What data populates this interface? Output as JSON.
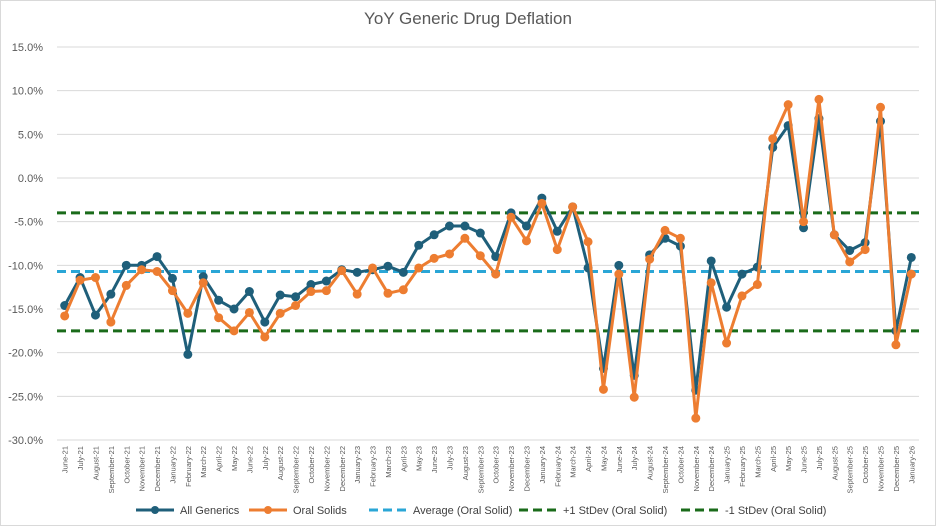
{
  "chart_data": {
    "type": "line",
    "title": "YoY Generic Drug Deflation",
    "xlabel": "",
    "ylabel": "",
    "ylim": [
      -30,
      15
    ],
    "y_ticks": [
      "15.0%",
      "10.0%",
      "5.0%",
      "0.0%",
      "-5.0%",
      "-10.0%",
      "-15.0%",
      "-20.0%",
      "-25.0%",
      "-30.0%"
    ],
    "y_tick_values": [
      15,
      10,
      5,
      0,
      -5,
      -10,
      -15,
      -20,
      -25,
      -30
    ],
    "grid": true,
    "legend_position": "bottom",
    "categories": [
      "June-21",
      "July-21",
      "August-21",
      "September-21",
      "October-21",
      "November-21",
      "December-21",
      "January-22",
      "February-22",
      "March-22",
      "April-22",
      "May-22",
      "June-22",
      "July-22",
      "August-22",
      "September-22",
      "October-22",
      "November-22",
      "December-22",
      "January-23",
      "February-23",
      "March-23",
      "April-23",
      "May-23",
      "June-23",
      "July-23",
      "August-23",
      "September-23",
      "October-23",
      "November-23",
      "December-23",
      "January-24",
      "February-24",
      "March-24",
      "April-24",
      "May-24",
      "June-24",
      "July-24",
      "August-24",
      "September-24",
      "October-24",
      "November-24",
      "December-24",
      "January-25",
      "February-25",
      "March-25",
      "April-25",
      "May-25",
      "June-25",
      "July-25",
      "August-25",
      "September-25",
      "October-25",
      "November-25",
      "December-25",
      "January-26"
    ],
    "series": [
      {
        "name": "All Generics",
        "color": "#1f5f7a",
        "style": "line-marker",
        "values": [
          -14.6,
          -11.4,
          -15.7,
          -13.3,
          -10.0,
          -10.0,
          -9.0,
          -11.5,
          -20.2,
          -11.3,
          -14.0,
          -15.0,
          -13.0,
          -16.5,
          -13.4,
          -13.6,
          -12.2,
          -11.8,
          -10.5,
          -10.8,
          -10.5,
          -10.1,
          -10.8,
          -7.7,
          -6.5,
          -5.5,
          -5.5,
          -6.3,
          -9.0,
          -4.0,
          -5.5,
          -2.3,
          -6.1,
          -3.3,
          -10.3,
          -21.8,
          -10.0,
          -22.6,
          -8.8,
          -6.9,
          -7.8,
          -24.3,
          -9.5,
          -14.8,
          -11.0,
          -10.2,
          3.5,
          6.0,
          -5.7,
          6.8,
          -6.5,
          -8.3,
          -7.4,
          6.5,
          -17.5,
          -9.1
        ]
      },
      {
        "name": "Oral Solids",
        "color": "#ed7d31",
        "style": "line-marker",
        "values": [
          -15.8,
          -11.7,
          -11.4,
          -16.5,
          -12.3,
          -10.5,
          -10.7,
          -12.9,
          -15.5,
          -12.0,
          -16.0,
          -17.5,
          -15.4,
          -18.2,
          -15.5,
          -14.6,
          -13.0,
          -12.9,
          -10.6,
          -13.3,
          -10.3,
          -13.2,
          -12.8,
          -10.3,
          -9.2,
          -8.7,
          -6.9,
          -8.9,
          -11.0,
          -4.5,
          -7.2,
          -2.9,
          -8.2,
          -3.3,
          -7.3,
          -24.2,
          -11.0,
          -25.1,
          -9.3,
          -6.0,
          -6.9,
          -27.5,
          -12.0,
          -18.9,
          -13.5,
          -12.2,
          4.5,
          8.4,
          -5.0,
          9.0,
          -6.5,
          -9.6,
          -8.2,
          8.1,
          -19.1,
          -11.0
        ]
      },
      {
        "name": "Average (Oral Solid)",
        "color": "#2aa6d6",
        "style": "dashed",
        "value": -10.7
      },
      {
        "name": "+1 StDev (Oral Solid)",
        "color": "#1a6b1a",
        "style": "dashed",
        "value": -4.0
      },
      {
        "name": "-1 StDev (Oral Solid)",
        "color": "#1a6b1a",
        "style": "dashed",
        "value": -17.5
      }
    ]
  }
}
